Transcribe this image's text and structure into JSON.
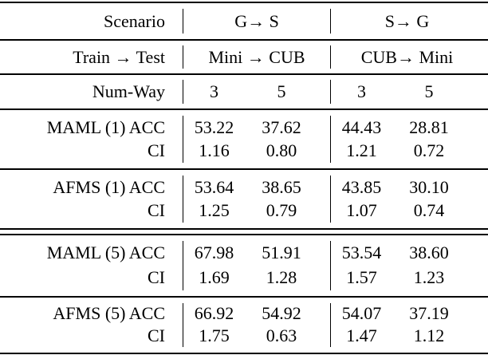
{
  "table": {
    "scenario_row": {
      "label": "Scenario",
      "groups": [
        "G→ S",
        "S→ G"
      ]
    },
    "train_test_row": {
      "label": "Train → Test",
      "groups": [
        "Mini → CUB",
        "CUB→ Mini"
      ]
    },
    "num_way_row": {
      "label": "Num-Way",
      "values": [
        "3",
        "5",
        "3",
        "5"
      ]
    },
    "blocks": [
      {
        "acc_label": "MAML (1) ACC",
        "ci_label": "CI",
        "acc": [
          "53.22",
          "37.62",
          "44.43",
          "28.81"
        ],
        "ci": [
          "1.16",
          "0.80",
          "1.21",
          "0.72"
        ]
      },
      {
        "acc_label": "AFMS (1) ACC",
        "ci_label": "CI",
        "acc": [
          "53.64",
          "38.65",
          "43.85",
          "30.10"
        ],
        "ci": [
          "1.25",
          "0.79",
          "1.07",
          "0.74"
        ]
      },
      {
        "acc_label": "MAML (5) ACC",
        "ci_label": "CI",
        "acc": [
          "67.98",
          "51.91",
          "53.54",
          "38.60"
        ],
        "ci": [
          "1.69",
          "1.28",
          "1.57",
          "1.23"
        ]
      },
      {
        "acc_label": "AFMS (5) ACC",
        "ci_label": "CI",
        "acc": [
          "66.92",
          "54.92",
          "54.07",
          "37.19"
        ],
        "ci": [
          "1.75",
          "0.63",
          "1.47",
          "1.12"
        ]
      }
    ]
  },
  "colors": {
    "text": "#000000",
    "rule": "#000000",
    "background": "#ffffff"
  },
  "chart_data": {
    "type": "table",
    "title": "",
    "column_groups": [
      {
        "scenario": "G→ S",
        "train_test": "Mini → CUB",
        "num_ways": [
          3,
          5
        ]
      },
      {
        "scenario": "S→ G",
        "train_test": "CUB→ Mini",
        "num_ways": [
          3,
          5
        ]
      }
    ],
    "row_headers": [
      "Scenario",
      "Train → Test",
      "Num-Way"
    ],
    "series": [
      {
        "name": "MAML (1) ACC",
        "values": [
          53.22,
          37.62,
          44.43,
          28.81
        ]
      },
      {
        "name": "MAML (1) CI",
        "values": [
          1.16,
          0.8,
          1.21,
          0.72
        ]
      },
      {
        "name": "AFMS (1) ACC",
        "values": [
          53.64,
          38.65,
          43.85,
          30.1
        ]
      },
      {
        "name": "AFMS (1) CI",
        "values": [
          1.25,
          0.79,
          1.07,
          0.74
        ]
      },
      {
        "name": "MAML (5) ACC",
        "values": [
          67.98,
          51.91,
          53.54,
          38.6
        ]
      },
      {
        "name": "MAML (5) CI",
        "values": [
          1.69,
          1.28,
          1.57,
          1.23
        ]
      },
      {
        "name": "AFMS (5) ACC",
        "values": [
          66.92,
          54.92,
          54.07,
          37.19
        ]
      },
      {
        "name": "AFMS (5) CI",
        "values": [
          1.75,
          0.63,
          1.47,
          1.12
        ]
      }
    ]
  }
}
